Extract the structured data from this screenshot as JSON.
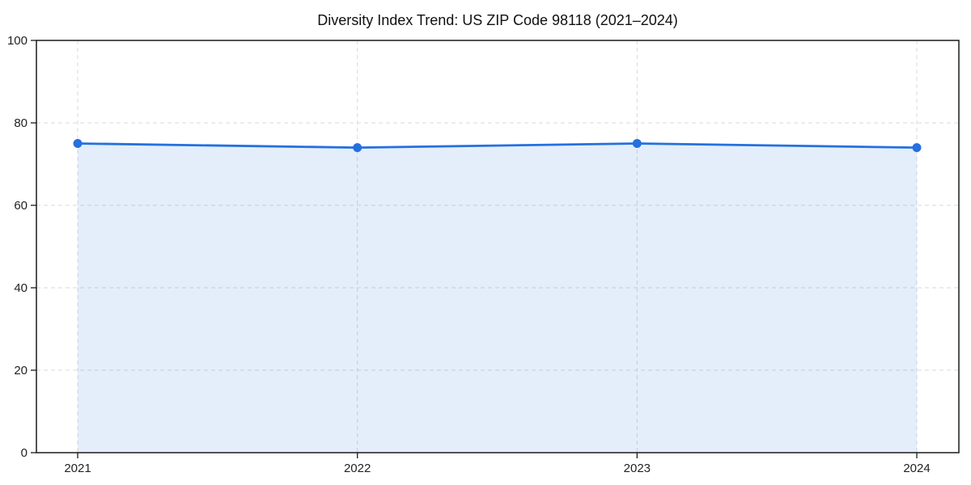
{
  "chart_data": {
    "type": "area",
    "title": "Diversity Index Trend: US ZIP Code 98118 (2021–2024)",
    "x": [
      2021,
      2022,
      2023,
      2024
    ],
    "xtick_labels": [
      "2021",
      "2022",
      "2023",
      "2024"
    ],
    "series": [
      {
        "name": "Diversity Index",
        "values": [
          75,
          74,
          75,
          74
        ]
      }
    ],
    "yticks": [
      0,
      20,
      40,
      60,
      80,
      100
    ],
    "ytick_labels": [
      "0",
      "20",
      "40",
      "60",
      "80",
      "100"
    ],
    "ylim": [
      0,
      100
    ],
    "grid": "dashed",
    "legend_position": "none",
    "line_color": "#2470df",
    "fill_color": "#2470df",
    "fill_opacity": 0.12,
    "marker": "circle",
    "background_color": "#ffffff",
    "spine_color": "#1a1a1a",
    "grid_color": "#d9d9d9",
    "tick_label_color": "#222222",
    "title_color": "#111111"
  }
}
